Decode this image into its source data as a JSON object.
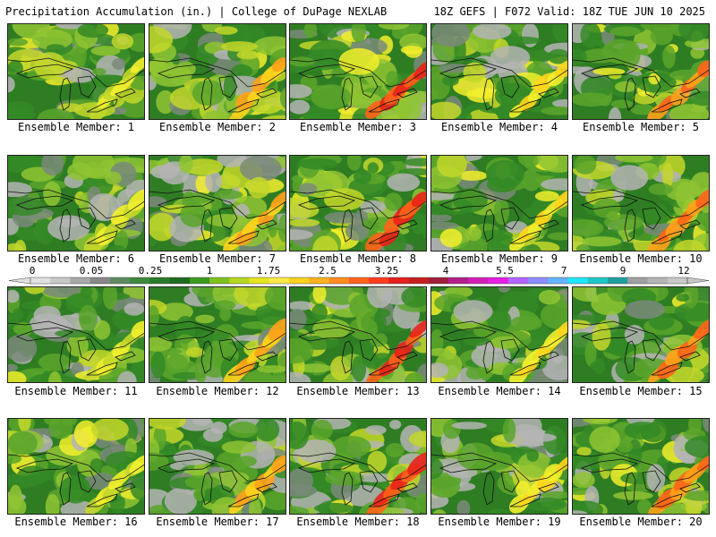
{
  "header": {
    "title_left": "Precipitation Accumulation (in.) | College of DuPage NEXLAB",
    "title_right": "18Z GEFS | F072 Valid: 18Z TUE JUN 10 2025"
  },
  "members": [
    {
      "label": "Ensemble Member: 1",
      "variant": 0
    },
    {
      "label": "Ensemble Member: 2",
      "variant": 1
    },
    {
      "label": "Ensemble Member: 3",
      "variant": 2
    },
    {
      "label": "Ensemble Member: 4",
      "variant": 3
    },
    {
      "label": "Ensemble Member: 5",
      "variant": 4
    },
    {
      "label": "Ensemble Member: 6",
      "variant": 5
    },
    {
      "label": "Ensemble Member: 7",
      "variant": 6
    },
    {
      "label": "Ensemble Member: 8",
      "variant": 7
    },
    {
      "label": "Ensemble Member: 9",
      "variant": 8
    },
    {
      "label": "Ensemble Member: 10",
      "variant": 9
    },
    {
      "label": "Ensemble Member: 11",
      "variant": 10
    },
    {
      "label": "Ensemble Member: 12",
      "variant": 11
    },
    {
      "label": "Ensemble Member: 13",
      "variant": 12
    },
    {
      "label": "Ensemble Member: 14",
      "variant": 13
    },
    {
      "label": "Ensemble Member: 15",
      "variant": 14
    },
    {
      "label": "Ensemble Member: 16",
      "variant": 15
    },
    {
      "label": "Ensemble Member: 17",
      "variant": 16
    },
    {
      "label": "Ensemble Member: 18",
      "variant": 17
    },
    {
      "label": "Ensemble Member: 19",
      "variant": 18
    },
    {
      "label": "Ensemble Member: 20",
      "variant": 19
    }
  ],
  "colorbar": {
    "labels": [
      "0",
      "0.05",
      "0.25",
      "1",
      "1.75",
      "2.5",
      "3.25",
      "4",
      "5.5",
      "7",
      "9",
      "12"
    ],
    "colors": [
      "#e0e0e0",
      "#c8c8c8",
      "#a8a8a8",
      "#888888",
      "#5e8a5e",
      "#3d8a3d",
      "#2a7a2a",
      "#1f6b1f",
      "#3a9a1e",
      "#7fc21e",
      "#b5d81e",
      "#e6e61e",
      "#ffe94a",
      "#ffd21e",
      "#ffb21e",
      "#ff8c1e",
      "#ff641e",
      "#ff3c1e",
      "#e61e1e",
      "#c81e1e",
      "#a01e3c",
      "#b41e8c",
      "#d21eb4",
      "#e61ee6",
      "#b464ff",
      "#8c8cff",
      "#64b4ff",
      "#1ee6ff",
      "#1ec8c8",
      "#1ea0a0",
      "#a0a0a0",
      "#b4b4b4",
      "#c8c8c8"
    ]
  }
}
